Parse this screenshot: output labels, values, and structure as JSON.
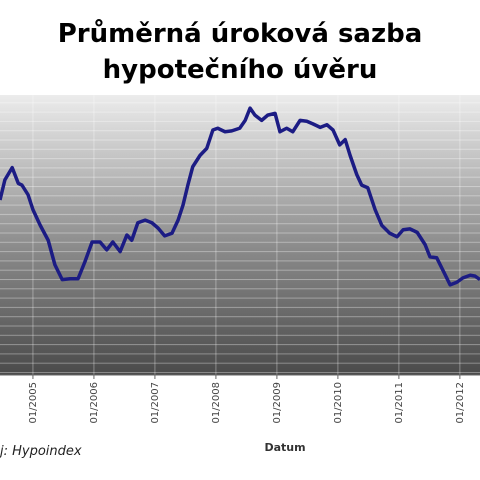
{
  "chart_data": {
    "type": "line",
    "title": [
      "Průměrná úroková sazba",
      "hypotečního úvěru"
    ],
    "x_label": "Datum",
    "source": "j:  Hypoindex",
    "x": [
      2004.46,
      2004.54,
      2004.66,
      2004.76,
      2004.82,
      2004.92,
      2005.0,
      2005.12,
      2005.25,
      2005.36,
      2005.48,
      2005.61,
      2005.74,
      2005.85,
      2005.97,
      2006.1,
      2006.21,
      2006.31,
      2006.43,
      2006.54,
      2006.62,
      2006.72,
      2006.84,
      2006.95,
      2007.05,
      2007.16,
      2007.28,
      2007.38,
      2007.46,
      2007.54,
      2007.62,
      2007.74,
      2007.85,
      2007.95,
      2008.03,
      2008.15,
      2008.26,
      2008.39,
      2008.48,
      2008.56,
      2008.64,
      2008.75,
      2008.85,
      2008.97,
      2009.05,
      2009.16,
      2009.26,
      2009.38,
      2009.49,
      2009.59,
      2009.71,
      2009.82,
      2009.92,
      2010.03,
      2010.12,
      2010.2,
      2010.31,
      2010.39,
      2010.49,
      2010.61,
      2010.72,
      2010.85,
      2010.97,
      2011.07,
      2011.18,
      2011.3,
      2011.43,
      2011.51,
      2011.62,
      2011.72,
      2011.84,
      2011.95,
      2012.05,
      2012.17,
      2012.25,
      2012.33
    ],
    "series": [
      {
        "color": "#1c1c84",
        "values": [
          5.0,
          5.23,
          5.37,
          5.19,
          5.17,
          5.06,
          4.89,
          4.71,
          4.54,
          4.26,
          4.09,
          4.1,
          4.1,
          4.29,
          4.52,
          4.52,
          4.43,
          4.52,
          4.41,
          4.6,
          4.54,
          4.74,
          4.77,
          4.74,
          4.68,
          4.59,
          4.62,
          4.77,
          4.94,
          5.17,
          5.38,
          5.51,
          5.59,
          5.8,
          5.82,
          5.78,
          5.79,
          5.82,
          5.91,
          6.05,
          5.97,
          5.91,
          5.97,
          5.99,
          5.78,
          5.82,
          5.78,
          5.91,
          5.9,
          5.87,
          5.83,
          5.86,
          5.8,
          5.63,
          5.69,
          5.51,
          5.29,
          5.17,
          5.14,
          4.89,
          4.71,
          4.62,
          4.58,
          4.66,
          4.67,
          4.63,
          4.49,
          4.35,
          4.34,
          4.2,
          4.03,
          4.06,
          4.11,
          4.14,
          4.13,
          4.09
        ]
      }
    ],
    "xlim": [
      2004.46,
      2012.33
    ],
    "ylim": [
      3.0,
      6.2
    ],
    "xticks": [
      {
        "value": 2005,
        "label": "01/2005"
      },
      {
        "value": 2006,
        "label": "01/2006"
      },
      {
        "value": 2007,
        "label": "01/2007"
      },
      {
        "value": 2008,
        "label": "01/2008"
      },
      {
        "value": 2009,
        "label": "01/2009"
      },
      {
        "value": 2010,
        "label": "01/2010"
      },
      {
        "value": 2011,
        "label": "01/2011"
      },
      {
        "value": 2012,
        "label": "01/2012"
      }
    ],
    "grid": true
  }
}
